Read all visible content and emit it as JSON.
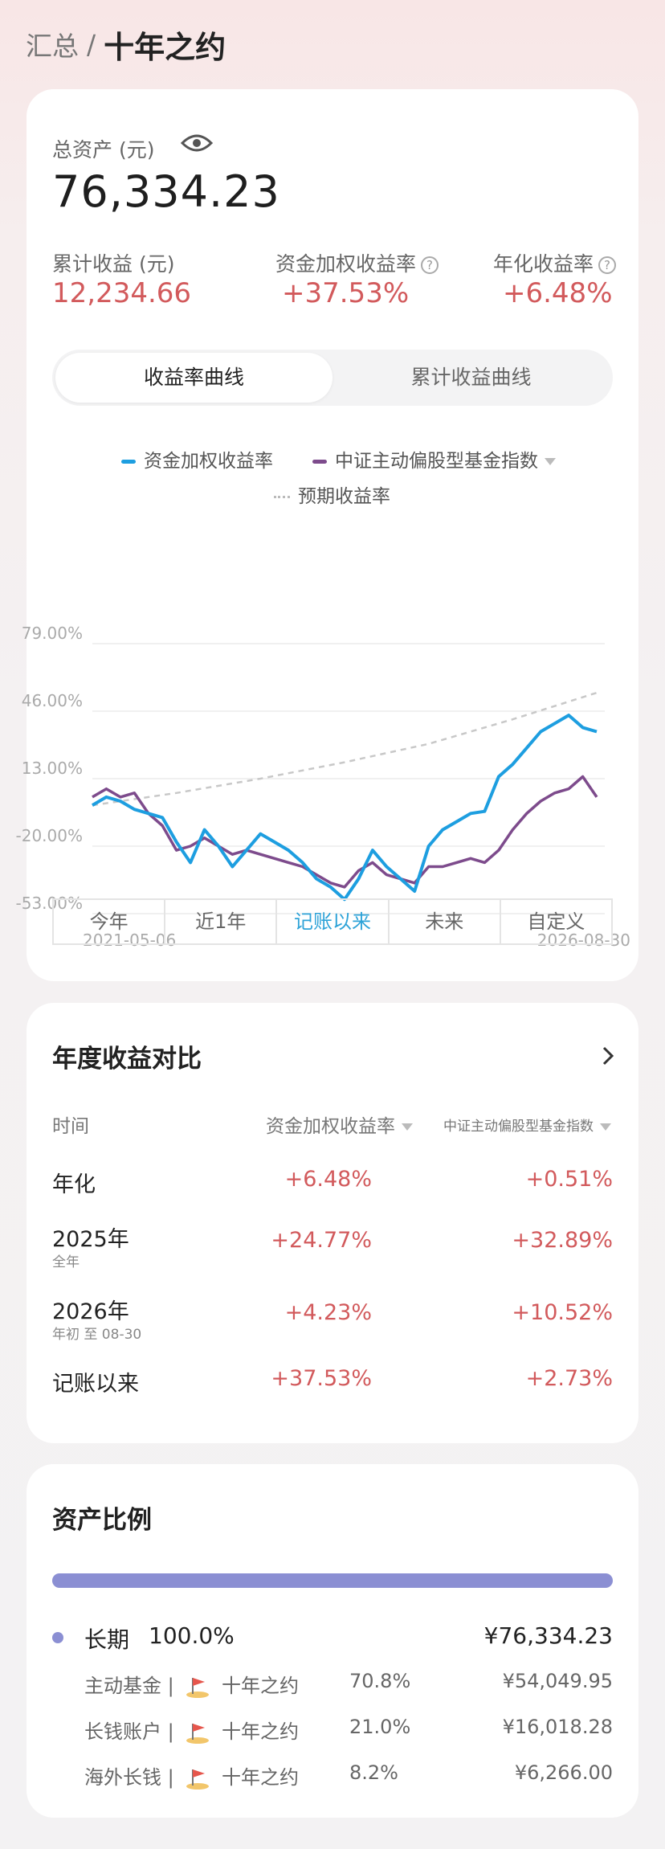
{
  "header": {
    "breadcrumb_root": "汇总",
    "separator": "/",
    "title": "十年之约"
  },
  "assets": {
    "total_label": "总资产 (元)",
    "total_value": "76,334.23",
    "cumulative_label": "累计收益 (元)",
    "cumulative_value": "12,234.66",
    "weighted_label": "资金加权收益率",
    "weighted_value": "+37.53%",
    "annual_label": "年化收益率",
    "annual_value": "+6.48%",
    "help_glyph": "?"
  },
  "chart_tabs": {
    "active": "收益率曲线",
    "inactive": "累计收益曲线"
  },
  "chart_legend": {
    "series1": "资金加权收益率",
    "series2": "中证主动偏股型基金指数",
    "series3": "预期收益率"
  },
  "chart_data": {
    "type": "line",
    "yticks": [
      "79.00%",
      "46.00%",
      "13.00%",
      "-20.00%",
      "-53.00%"
    ],
    "ylim": [
      -53,
      79
    ],
    "x_start": "2021-05-06",
    "x_end": "2026-08-30",
    "colors": {
      "series1": "#1d9ee0",
      "series2": "#7d4b8c",
      "series3": "#c8c8c8"
    },
    "series": [
      {
        "name": "资金加权收益率",
        "points": [
          [
            0,
            0
          ],
          [
            1,
            4
          ],
          [
            2,
            2
          ],
          [
            3,
            -2
          ],
          [
            4,
            -4
          ],
          [
            5,
            -6
          ],
          [
            6,
            -18
          ],
          [
            7,
            -28
          ],
          [
            8,
            -12
          ],
          [
            9,
            -20
          ],
          [
            10,
            -30
          ],
          [
            11,
            -22
          ],
          [
            12,
            -14
          ],
          [
            13,
            -18
          ],
          [
            14,
            -22
          ],
          [
            15,
            -28
          ],
          [
            16,
            -36
          ],
          [
            17,
            -40
          ],
          [
            18,
            -46
          ],
          [
            19,
            -36
          ],
          [
            20,
            -22
          ],
          [
            21,
            -30
          ],
          [
            22,
            -36
          ],
          [
            23,
            -42
          ],
          [
            24,
            -20
          ],
          [
            25,
            -12
          ],
          [
            26,
            -8
          ],
          [
            27,
            -4
          ],
          [
            28,
            -3
          ],
          [
            29,
            14
          ],
          [
            30,
            20
          ],
          [
            31,
            28
          ],
          [
            32,
            36
          ],
          [
            33,
            40
          ],
          [
            34,
            44
          ],
          [
            35,
            38
          ],
          [
            36,
            36
          ]
        ]
      },
      {
        "name": "中证主动偏股型基金指数",
        "points": [
          [
            0,
            4
          ],
          [
            1,
            8
          ],
          [
            2,
            4
          ],
          [
            3,
            6
          ],
          [
            4,
            -4
          ],
          [
            5,
            -10
          ],
          [
            6,
            -22
          ],
          [
            7,
            -20
          ],
          [
            8,
            -16
          ],
          [
            9,
            -20
          ],
          [
            10,
            -24
          ],
          [
            11,
            -22
          ],
          [
            12,
            -24
          ],
          [
            13,
            -26
          ],
          [
            14,
            -28
          ],
          [
            15,
            -30
          ],
          [
            16,
            -34
          ],
          [
            17,
            -38
          ],
          [
            18,
            -40
          ],
          [
            19,
            -32
          ],
          [
            20,
            -28
          ],
          [
            21,
            -34
          ],
          [
            22,
            -36
          ],
          [
            23,
            -38
          ],
          [
            24,
            -30
          ],
          [
            25,
            -30
          ],
          [
            26,
            -28
          ],
          [
            27,
            -26
          ],
          [
            28,
            -28
          ],
          [
            29,
            -22
          ],
          [
            30,
            -12
          ],
          [
            31,
            -4
          ],
          [
            32,
            2
          ],
          [
            33,
            6
          ],
          [
            34,
            8
          ],
          [
            35,
            14
          ],
          [
            36,
            4
          ]
        ]
      },
      {
        "name": "预期收益率",
        "points": [
          [
            0,
            0
          ],
          [
            6,
            6
          ],
          [
            12,
            13
          ],
          [
            18,
            21
          ],
          [
            24,
            30
          ],
          [
            30,
            42
          ],
          [
            36,
            55
          ]
        ]
      }
    ]
  },
  "range_tabs": [
    "今年",
    "近1年",
    "记账以来",
    "未来",
    "自定义"
  ],
  "yearly": {
    "title": "年度收益对比",
    "col_time": "时间",
    "col_weighted": "资金加权收益率",
    "col_index": "中证主动偏股型基金指数",
    "rows": [
      {
        "label": "年化",
        "sub": "",
        "weighted": "+6.48%",
        "index": "+0.51%"
      },
      {
        "label": "2025年",
        "sub": "全年",
        "weighted": "+24.77%",
        "index": "+32.89%"
      },
      {
        "label": "2026年",
        "sub": "年初 至 08-30",
        "weighted": "+4.23%",
        "index": "+10.52%"
      },
      {
        "label": "记账以来",
        "sub": "",
        "weighted": "+37.53%",
        "index": "+2.73%"
      }
    ]
  },
  "ratio": {
    "title": "资产比例",
    "bar_percent": 100,
    "bar_color": "#8b8fd3",
    "group": {
      "name": "长期",
      "percent": "100.0%",
      "amount": "¥76,334.23"
    },
    "items": [
      {
        "name": "主动基金",
        "plan": "十年之约",
        "percent": "70.8%",
        "amount": "¥54,049.95"
      },
      {
        "name": "长钱账户",
        "plan": "十年之约",
        "percent": "21.0%",
        "amount": "¥16,018.28"
      },
      {
        "name": "海外长钱",
        "plan": "十年之约",
        "percent": "8.2%",
        "amount": "¥6,266.00"
      }
    ],
    "separator": "|"
  }
}
